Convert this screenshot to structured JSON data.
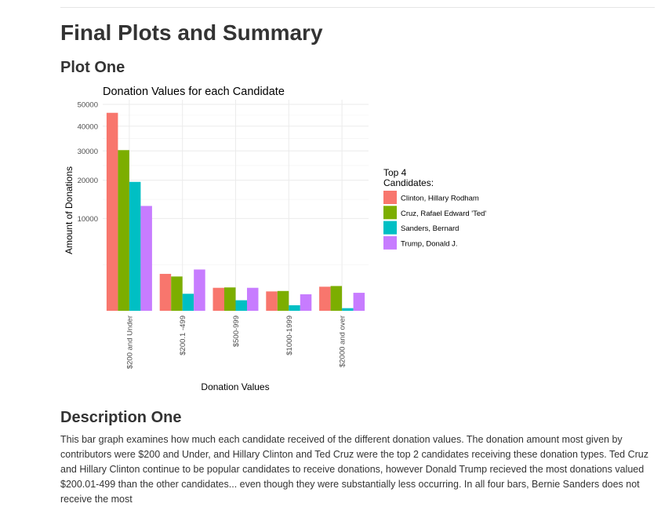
{
  "page": {
    "title": "Final Plots and Summary",
    "plot_heading": "Plot One",
    "description_heading": "Description One",
    "description_text": "This bar graph examines how much each candidate received of the different donation values. The donation amount most given by contributors were $200 and Under, and Hillary Clinton and Ted Cruz were the top 2 candidates receiving these donation types. Ted Cruz and Hillary Clinton continue to be popular candidates to receive donations, however Donald Trump recieved the most donations valued $200.01-499 than the other candidates... even though they were substantially less occurring. In all four bars, Bernie Sanders does not receive the most"
  },
  "chart_data": {
    "type": "bar",
    "title": "Donation Values for each Candidate",
    "xlabel": "Donation Values",
    "ylabel": "Amount of Donations",
    "y_scale": "sqrt",
    "ylim": [
      0,
      50000
    ],
    "yticks": [
      10000,
      20000,
      30000,
      40000,
      50000
    ],
    "grid": true,
    "legend_position": "right",
    "legend_title": "Top 4\nCandidates:",
    "categories": [
      "$200 and Under",
      "$200.1 -499",
      "$500-999",
      "$1000-1999",
      "$2000 and over"
    ],
    "series": [
      {
        "name": "Clinton, Hillary Rodham",
        "color": "#F8766D",
        "values": [
          46000,
          1600,
          620,
          440,
          680
        ]
      },
      {
        "name": "Cruz, Rafael Edward 'Ted'",
        "color": "#7CAE00",
        "values": [
          30300,
          1380,
          640,
          460,
          720
        ]
      },
      {
        "name": "Sanders, Bernard",
        "color": "#00BFC4",
        "values": [
          19500,
          340,
          130,
          36,
          8
        ]
      },
      {
        "name": "Trump, Donald J.",
        "color": "#C77CFF",
        "values": [
          12900,
          2000,
          620,
          320,
          380
        ]
      }
    ]
  }
}
